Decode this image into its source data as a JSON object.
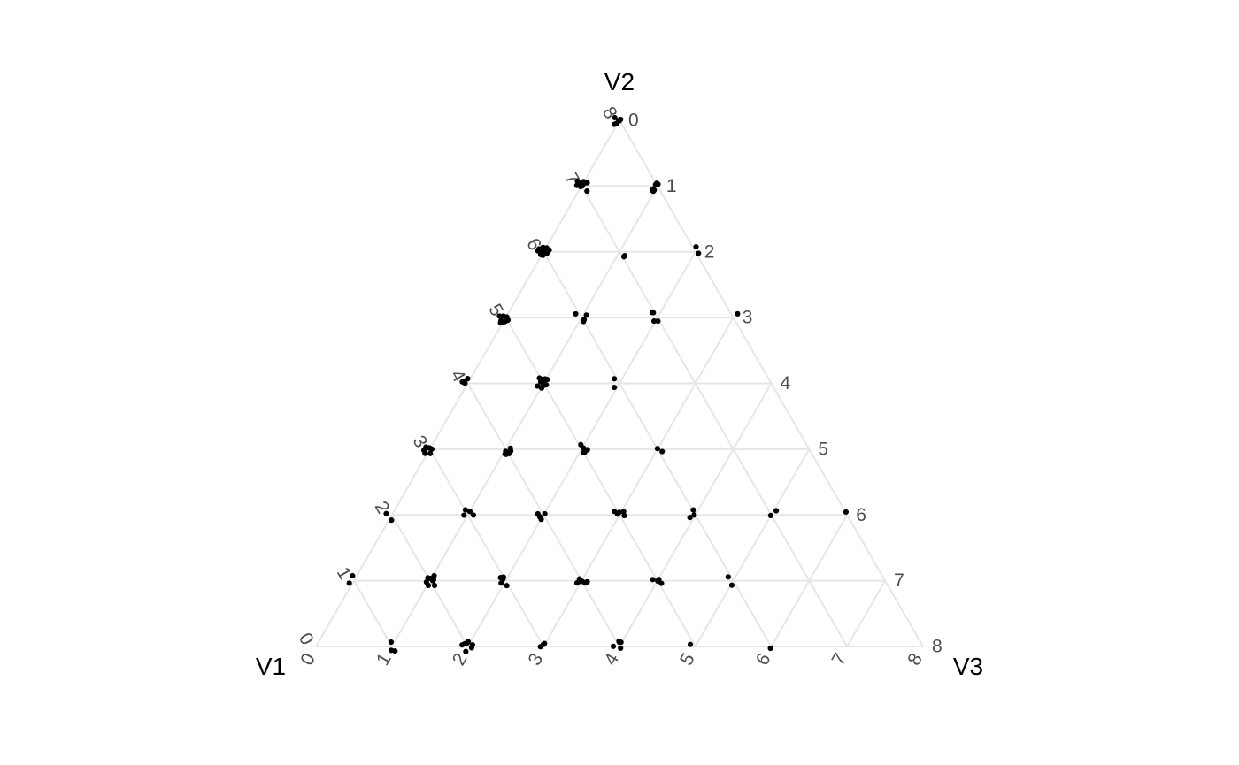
{
  "chart_data": {
    "type": "scatter",
    "subtype": "ternary",
    "title": "",
    "axes": {
      "v1": "V1",
      "v2": "V2",
      "v3": "V3"
    },
    "range": [
      0,
      8
    ],
    "ticks": [
      "0",
      "1",
      "2",
      "3",
      "4",
      "5",
      "6",
      "7",
      "8"
    ],
    "grid": true,
    "legend": "none",
    "point_color": "#000000",
    "grid_color": "#e6e6e6",
    "points": [
      {
        "v1": 0,
        "v2": 8,
        "v3": 0,
        "n": 6
      },
      {
        "v1": 1,
        "v2": 7,
        "v3": 0,
        "n": 10
      },
      {
        "v1": 0,
        "v2": 7,
        "v3": 1,
        "n": 7
      },
      {
        "v1": 2,
        "v2": 6,
        "v3": 0,
        "n": 14
      },
      {
        "v1": 1,
        "v2": 6,
        "v3": 1,
        "n": 2
      },
      {
        "v1": 0,
        "v2": 6,
        "v3": 2,
        "n": 2
      },
      {
        "v1": 3,
        "v2": 5,
        "v3": 0,
        "n": 10
      },
      {
        "v1": 2,
        "v2": 5,
        "v3": 1,
        "n": 4
      },
      {
        "v1": 1,
        "v2": 5,
        "v3": 2,
        "n": 4
      },
      {
        "v1": 0,
        "v2": 5,
        "v3": 3,
        "n": 1
      },
      {
        "v1": 4,
        "v2": 4,
        "v3": 0,
        "n": 4
      },
      {
        "v1": 3,
        "v2": 4,
        "v3": 1,
        "n": 10
      },
      {
        "v1": 2,
        "v2": 4,
        "v3": 2,
        "n": 2
      },
      {
        "v1": 5,
        "v2": 3,
        "v3": 0,
        "n": 7
      },
      {
        "v1": 4,
        "v2": 3,
        "v3": 1,
        "n": 6
      },
      {
        "v1": 3,
        "v2": 3,
        "v3": 2,
        "n": 5
      },
      {
        "v1": 2,
        "v2": 3,
        "v3": 3,
        "n": 2
      },
      {
        "v1": 6,
        "v2": 2,
        "v3": 0,
        "n": 2
      },
      {
        "v1": 5,
        "v2": 2,
        "v3": 1,
        "n": 5
      },
      {
        "v1": 4,
        "v2": 2,
        "v3": 2,
        "n": 5
      },
      {
        "v1": 3,
        "v2": 2,
        "v3": 3,
        "n": 5
      },
      {
        "v1": 2,
        "v2": 2,
        "v3": 4,
        "n": 3
      },
      {
        "v1": 1,
        "v2": 2,
        "v3": 5,
        "n": 2
      },
      {
        "v1": 0,
        "v2": 2,
        "v3": 6,
        "n": 1
      },
      {
        "v1": 7,
        "v2": 1,
        "v3": 0,
        "n": 2
      },
      {
        "v1": 6,
        "v2": 1,
        "v3": 1,
        "n": 8
      },
      {
        "v1": 5,
        "v2": 1,
        "v3": 2,
        "n": 5
      },
      {
        "v1": 4,
        "v2": 1,
        "v3": 3,
        "n": 7
      },
      {
        "v1": 3,
        "v2": 1,
        "v3": 4,
        "n": 4
      },
      {
        "v1": 2,
        "v2": 1,
        "v3": 5,
        "n": 2
      },
      {
        "v1": 7,
        "v2": 0,
        "v3": 1,
        "n": 3
      },
      {
        "v1": 6,
        "v2": 0,
        "v3": 2,
        "n": 7
      },
      {
        "v1": 5,
        "v2": 0,
        "v3": 3,
        "n": 3
      },
      {
        "v1": 4,
        "v2": 0,
        "v3": 4,
        "n": 5
      },
      {
        "v1": 3,
        "v2": 0,
        "v3": 5,
        "n": 1
      },
      {
        "v1": 2,
        "v2": 0,
        "v3": 6,
        "n": 1
      }
    ]
  }
}
